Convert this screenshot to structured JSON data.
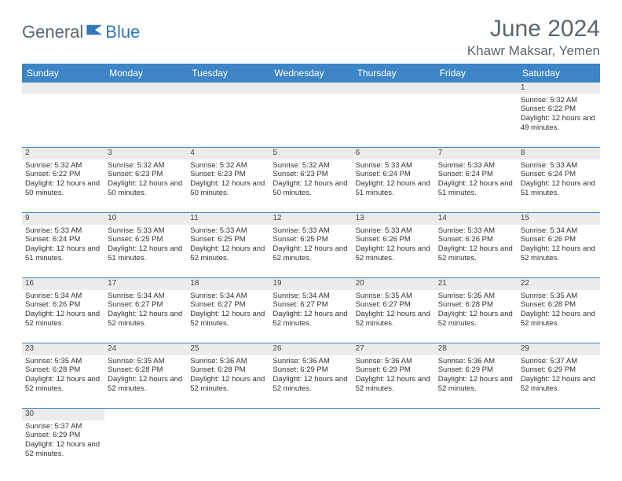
{
  "logo": {
    "general": "General",
    "blue": "Blue",
    "icon_color": "#2f77b8"
  },
  "title": "June 2024",
  "location": "Khawr Maksar, Yemen",
  "colors": {
    "header_bg": "#3d85c6",
    "header_text": "#ffffff",
    "daynum_bg": "#ececec",
    "border": "#3d85c6",
    "title_color": "#5c6670",
    "logo_gray": "#5c6670",
    "logo_blue": "#2f77b8"
  },
  "weekdays": [
    "Sunday",
    "Monday",
    "Tuesday",
    "Wednesday",
    "Thursday",
    "Friday",
    "Saturday"
  ],
  "weeks": [
    [
      null,
      null,
      null,
      null,
      null,
      null,
      {
        "n": "1",
        "sr": "5:32 AM",
        "ss": "6:22 PM",
        "dl": "12 hours and 49 minutes."
      }
    ],
    [
      {
        "n": "2",
        "sr": "5:32 AM",
        "ss": "6:22 PM",
        "dl": "12 hours and 50 minutes."
      },
      {
        "n": "3",
        "sr": "5:32 AM",
        "ss": "6:23 PM",
        "dl": "12 hours and 50 minutes."
      },
      {
        "n": "4",
        "sr": "5:32 AM",
        "ss": "6:23 PM",
        "dl": "12 hours and 50 minutes."
      },
      {
        "n": "5",
        "sr": "5:32 AM",
        "ss": "6:23 PM",
        "dl": "12 hours and 50 minutes."
      },
      {
        "n": "6",
        "sr": "5:33 AM",
        "ss": "6:24 PM",
        "dl": "12 hours and 51 minutes."
      },
      {
        "n": "7",
        "sr": "5:33 AM",
        "ss": "6:24 PM",
        "dl": "12 hours and 51 minutes."
      },
      {
        "n": "8",
        "sr": "5:33 AM",
        "ss": "6:24 PM",
        "dl": "12 hours and 51 minutes."
      }
    ],
    [
      {
        "n": "9",
        "sr": "5:33 AM",
        "ss": "6:24 PM",
        "dl": "12 hours and 51 minutes."
      },
      {
        "n": "10",
        "sr": "5:33 AM",
        "ss": "6:25 PM",
        "dl": "12 hours and 51 minutes."
      },
      {
        "n": "11",
        "sr": "5:33 AM",
        "ss": "6:25 PM",
        "dl": "12 hours and 52 minutes."
      },
      {
        "n": "12",
        "sr": "5:33 AM",
        "ss": "6:25 PM",
        "dl": "12 hours and 52 minutes."
      },
      {
        "n": "13",
        "sr": "5:33 AM",
        "ss": "6:26 PM",
        "dl": "12 hours and 52 minutes."
      },
      {
        "n": "14",
        "sr": "5:33 AM",
        "ss": "6:26 PM",
        "dl": "12 hours and 52 minutes."
      },
      {
        "n": "15",
        "sr": "5:34 AM",
        "ss": "6:26 PM",
        "dl": "12 hours and 52 minutes."
      }
    ],
    [
      {
        "n": "16",
        "sr": "5:34 AM",
        "ss": "6:26 PM",
        "dl": "12 hours and 52 minutes."
      },
      {
        "n": "17",
        "sr": "5:34 AM",
        "ss": "6:27 PM",
        "dl": "12 hours and 52 minutes."
      },
      {
        "n": "18",
        "sr": "5:34 AM",
        "ss": "6:27 PM",
        "dl": "12 hours and 52 minutes."
      },
      {
        "n": "19",
        "sr": "5:34 AM",
        "ss": "6:27 PM",
        "dl": "12 hours and 52 minutes."
      },
      {
        "n": "20",
        "sr": "5:35 AM",
        "ss": "6:27 PM",
        "dl": "12 hours and 52 minutes."
      },
      {
        "n": "21",
        "sr": "5:35 AM",
        "ss": "6:28 PM",
        "dl": "12 hours and 52 minutes."
      },
      {
        "n": "22",
        "sr": "5:35 AM",
        "ss": "6:28 PM",
        "dl": "12 hours and 52 minutes."
      }
    ],
    [
      {
        "n": "23",
        "sr": "5:35 AM",
        "ss": "6:28 PM",
        "dl": "12 hours and 52 minutes."
      },
      {
        "n": "24",
        "sr": "5:35 AM",
        "ss": "6:28 PM",
        "dl": "12 hours and 52 minutes."
      },
      {
        "n": "25",
        "sr": "5:36 AM",
        "ss": "6:28 PM",
        "dl": "12 hours and 52 minutes."
      },
      {
        "n": "26",
        "sr": "5:36 AM",
        "ss": "6:29 PM",
        "dl": "12 hours and 52 minutes."
      },
      {
        "n": "27",
        "sr": "5:36 AM",
        "ss": "6:29 PM",
        "dl": "12 hours and 52 minutes."
      },
      {
        "n": "28",
        "sr": "5:36 AM",
        "ss": "6:29 PM",
        "dl": "12 hours and 52 minutes."
      },
      {
        "n": "29",
        "sr": "5:37 AM",
        "ss": "6:29 PM",
        "dl": "12 hours and 52 minutes."
      }
    ],
    [
      {
        "n": "30",
        "sr": "5:37 AM",
        "ss": "6:29 PM",
        "dl": "12 hours and 52 minutes."
      },
      null,
      null,
      null,
      null,
      null,
      null
    ]
  ],
  "labels": {
    "sunrise": "Sunrise:",
    "sunset": "Sunset:",
    "daylight": "Daylight:"
  }
}
